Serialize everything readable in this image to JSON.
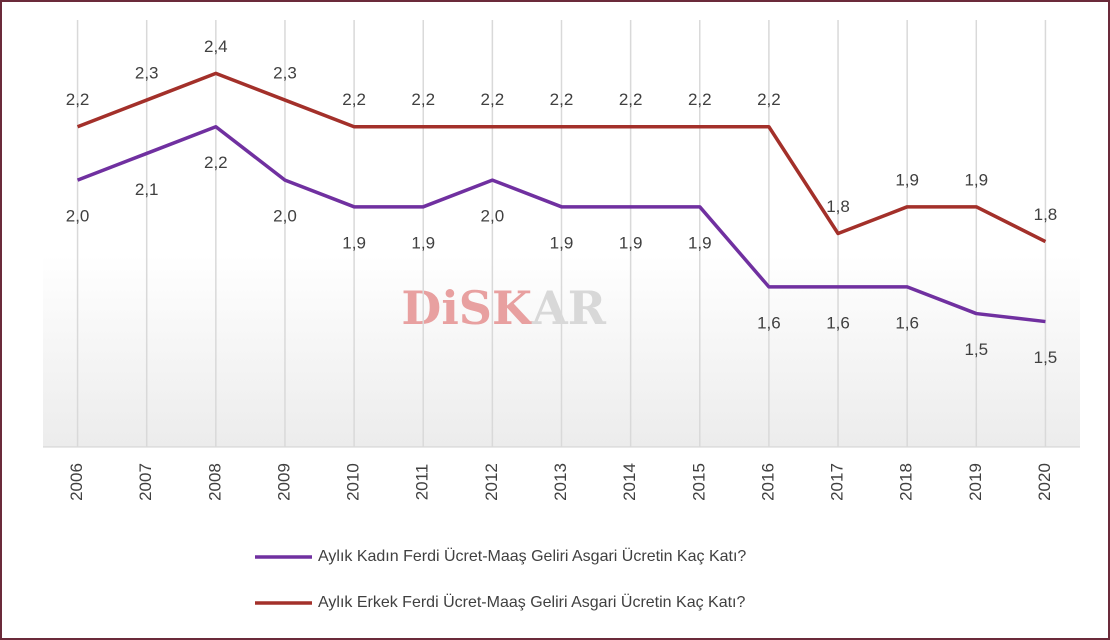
{
  "chart_data": {
    "type": "line",
    "categories": [
      "2006",
      "2007",
      "2008",
      "2009",
      "2010",
      "2011",
      "2012",
      "2013",
      "2014",
      "2015",
      "2016",
      "2017",
      "2018",
      "2019",
      "2020"
    ],
    "series": [
      {
        "name": "Aylık Kadın Ferdi Ücret-Maaş Geliri Asgari Ücretin Kaç Katı?",
        "color": "#7030a0",
        "values": [
          2.0,
          2.1,
          2.2,
          2.0,
          1.9,
          1.9,
          2.0,
          1.9,
          1.9,
          1.9,
          1.6,
          1.6,
          1.6,
          1.5,
          1.47
        ],
        "value_labels": [
          "2,0",
          "2,1",
          "2,2",
          "2,0",
          "1,9",
          "1,9",
          "2,0",
          "1,9",
          "1,9",
          "1,9",
          "1,6",
          "1,6",
          "1,6",
          "1,5",
          "1,5"
        ]
      },
      {
        "name": "Aylık Erkek Ferdi Ücret-Maaş Geliri Asgari Ücretin Kaç Katı?",
        "color": "#a3302a",
        "values": [
          2.2,
          2.3,
          2.4,
          2.3,
          2.2,
          2.2,
          2.2,
          2.2,
          2.2,
          2.2,
          2.2,
          1.8,
          1.9,
          1.9,
          1.77
        ],
        "value_labels": [
          "2,2",
          "2,3",
          "2,4",
          "2,3",
          "2,2",
          "2,2",
          "2,2",
          "2,2",
          "2,2",
          "2,2",
          "2,2",
          "1,8",
          "1,9",
          "1,9",
          "1,8"
        ]
      }
    ],
    "ylim": [
      1.0,
      2.6
    ],
    "grid": true,
    "watermark": [
      "DiSK",
      "AR"
    ]
  }
}
